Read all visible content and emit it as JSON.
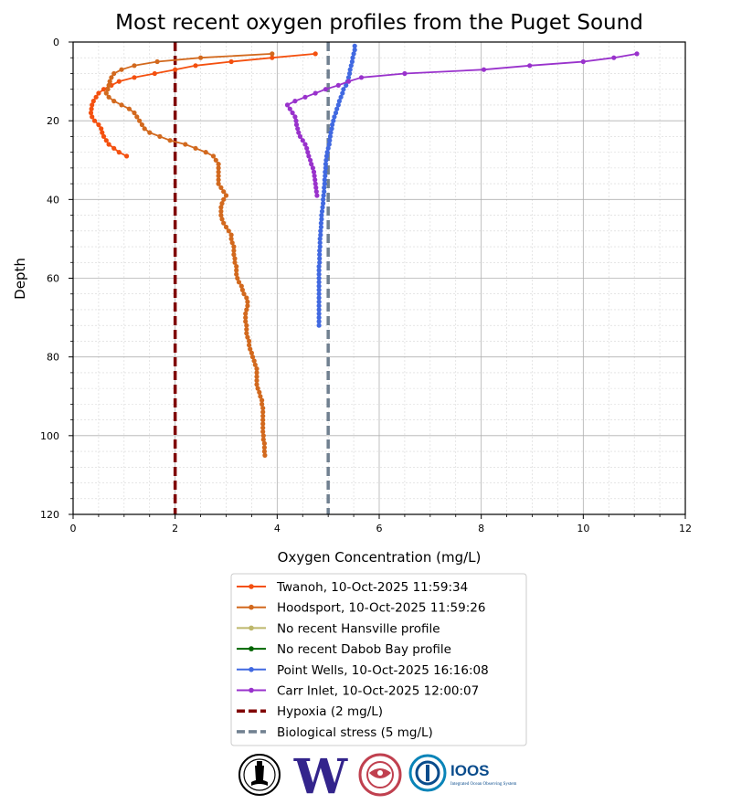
{
  "chart_data": {
    "type": "line",
    "title": "Most recent oxygen profiles from the Puget Sound",
    "xlabel": "Oxygen Concentration (mg/L)",
    "ylabel": "Depth",
    "xlim": [
      0,
      12
    ],
    "ylim": [
      0,
      120
    ],
    "y_inverted": true,
    "x_ticks": [
      "0",
      "2",
      "4",
      "6",
      "8",
      "10",
      "12"
    ],
    "y_ticks": [
      "0",
      "20",
      "40",
      "60",
      "80",
      "100",
      "120"
    ],
    "grid": "major and minor",
    "legend_position": "below",
    "series": [
      {
        "name": "Twanoh, 10-Oct-2025 11:59:34",
        "color": "#f4500f",
        "points": [
          [
            4.75,
            3
          ],
          [
            3.9,
            4
          ],
          [
            3.1,
            5
          ],
          [
            2.4,
            6
          ],
          [
            2.0,
            7
          ],
          [
            1.6,
            8
          ],
          [
            1.2,
            9
          ],
          [
            0.9,
            10
          ],
          [
            0.75,
            11
          ],
          [
            0.6,
            12
          ],
          [
            0.5,
            13
          ],
          [
            0.45,
            14
          ],
          [
            0.4,
            15
          ],
          [
            0.37,
            16
          ],
          [
            0.36,
            17
          ],
          [
            0.35,
            18
          ],
          [
            0.37,
            19
          ],
          [
            0.42,
            20
          ],
          [
            0.5,
            21
          ],
          [
            0.55,
            22
          ],
          [
            0.57,
            23
          ],
          [
            0.6,
            24
          ],
          [
            0.65,
            25
          ],
          [
            0.7,
            26
          ],
          [
            0.8,
            27
          ],
          [
            0.9,
            28
          ],
          [
            1.05,
            29
          ]
        ]
      },
      {
        "name": "Hoodsport, 10-Oct-2025 11:59:26",
        "color": "#d2691e",
        "points": [
          [
            3.9,
            3
          ],
          [
            2.5,
            4
          ],
          [
            1.65,
            5
          ],
          [
            1.2,
            6
          ],
          [
            0.95,
            7
          ],
          [
            0.8,
            8
          ],
          [
            0.75,
            9
          ],
          [
            0.72,
            10
          ],
          [
            0.7,
            11
          ],
          [
            0.68,
            12
          ],
          [
            0.65,
            13
          ],
          [
            0.7,
            14
          ],
          [
            0.8,
            15
          ],
          [
            0.95,
            16
          ],
          [
            1.1,
            17
          ],
          [
            1.2,
            18
          ],
          [
            1.25,
            19
          ],
          [
            1.3,
            20
          ],
          [
            1.35,
            21
          ],
          [
            1.4,
            22
          ],
          [
            1.5,
            23
          ],
          [
            1.7,
            24
          ],
          [
            1.9,
            25
          ],
          [
            2.2,
            26
          ],
          [
            2.4,
            27
          ],
          [
            2.6,
            28
          ],
          [
            2.75,
            29
          ],
          [
            2.8,
            30
          ],
          [
            2.85,
            31
          ],
          [
            2.85,
            32
          ],
          [
            2.85,
            33
          ],
          [
            2.85,
            34
          ],
          [
            2.85,
            35
          ],
          [
            2.85,
            36
          ],
          [
            2.9,
            37
          ],
          [
            2.95,
            38
          ],
          [
            3.0,
            39
          ],
          [
            2.95,
            40
          ],
          [
            2.92,
            41
          ],
          [
            2.9,
            42
          ],
          [
            2.9,
            43
          ],
          [
            2.9,
            44
          ],
          [
            2.92,
            45
          ],
          [
            2.95,
            46
          ],
          [
            3.0,
            47
          ],
          [
            3.05,
            48
          ],
          [
            3.1,
            49
          ],
          [
            3.1,
            50
          ],
          [
            3.12,
            51
          ],
          [
            3.15,
            52
          ],
          [
            3.15,
            53
          ],
          [
            3.15,
            54
          ],
          [
            3.17,
            55
          ],
          [
            3.17,
            56
          ],
          [
            3.2,
            57
          ],
          [
            3.2,
            58
          ],
          [
            3.2,
            59
          ],
          [
            3.22,
            60
          ],
          [
            3.25,
            61
          ],
          [
            3.3,
            62
          ],
          [
            3.32,
            63
          ],
          [
            3.35,
            64
          ],
          [
            3.4,
            65
          ],
          [
            3.42,
            66
          ],
          [
            3.42,
            67
          ],
          [
            3.4,
            68
          ],
          [
            3.38,
            69
          ],
          [
            3.38,
            70
          ],
          [
            3.38,
            71
          ],
          [
            3.4,
            72
          ],
          [
            3.4,
            73
          ],
          [
            3.4,
            74
          ],
          [
            3.42,
            75
          ],
          [
            3.45,
            76
          ],
          [
            3.45,
            77
          ],
          [
            3.47,
            78
          ],
          [
            3.5,
            79
          ],
          [
            3.52,
            80
          ],
          [
            3.55,
            81
          ],
          [
            3.57,
            82
          ],
          [
            3.6,
            83
          ],
          [
            3.6,
            84
          ],
          [
            3.6,
            85
          ],
          [
            3.6,
            86
          ],
          [
            3.6,
            87
          ],
          [
            3.62,
            88
          ],
          [
            3.65,
            89
          ],
          [
            3.67,
            90
          ],
          [
            3.7,
            91
          ],
          [
            3.7,
            92
          ],
          [
            3.72,
            93
          ],
          [
            3.72,
            94
          ],
          [
            3.72,
            95
          ],
          [
            3.72,
            96
          ],
          [
            3.72,
            97
          ],
          [
            3.72,
            98
          ],
          [
            3.72,
            99
          ],
          [
            3.73,
            100
          ],
          [
            3.73,
            101
          ],
          [
            3.75,
            102
          ],
          [
            3.75,
            103
          ],
          [
            3.75,
            104
          ],
          [
            3.76,
            105
          ]
        ]
      },
      {
        "name": "No recent Hansville profile",
        "color": "#bdb76b",
        "points": []
      },
      {
        "name": "No recent Dabob Bay profile",
        "color": "#006400",
        "points": []
      },
      {
        "name": "Point Wells, 10-Oct-2025 16:16:08",
        "color": "#4169e1",
        "points": [
          [
            5.52,
            1
          ],
          [
            5.52,
            2
          ],
          [
            5.5,
            3
          ],
          [
            5.48,
            4
          ],
          [
            5.47,
            5
          ],
          [
            5.45,
            6
          ],
          [
            5.43,
            7
          ],
          [
            5.42,
            8
          ],
          [
            5.4,
            9
          ],
          [
            5.38,
            10
          ],
          [
            5.35,
            11
          ],
          [
            5.3,
            12
          ],
          [
            5.28,
            13
          ],
          [
            5.25,
            14
          ],
          [
            5.22,
            15
          ],
          [
            5.2,
            16
          ],
          [
            5.17,
            17
          ],
          [
            5.15,
            18
          ],
          [
            5.12,
            19
          ],
          [
            5.1,
            20
          ],
          [
            5.08,
            21
          ],
          [
            5.07,
            22
          ],
          [
            5.05,
            23
          ],
          [
            5.04,
            24
          ],
          [
            5.03,
            25
          ],
          [
            5.02,
            26
          ],
          [
            5.0,
            27
          ],
          [
            4.98,
            28
          ],
          [
            4.97,
            29
          ],
          [
            4.96,
            30
          ],
          [
            4.95,
            31
          ],
          [
            4.95,
            32
          ],
          [
            4.94,
            33
          ],
          [
            4.94,
            34
          ],
          [
            4.93,
            35
          ],
          [
            4.93,
            36
          ],
          [
            4.92,
            37
          ],
          [
            4.92,
            38
          ],
          [
            4.91,
            39
          ],
          [
            4.9,
            40
          ],
          [
            4.9,
            41
          ],
          [
            4.89,
            42
          ],
          [
            4.88,
            43
          ],
          [
            4.87,
            44
          ],
          [
            4.87,
            45
          ],
          [
            4.86,
            46
          ],
          [
            4.86,
            47
          ],
          [
            4.85,
            48
          ],
          [
            4.85,
            49
          ],
          [
            4.84,
            50
          ],
          [
            4.84,
            51
          ],
          [
            4.84,
            52
          ],
          [
            4.83,
            53
          ],
          [
            4.83,
            54
          ],
          [
            4.83,
            55
          ],
          [
            4.83,
            56
          ],
          [
            4.82,
            57
          ],
          [
            4.82,
            58
          ],
          [
            4.82,
            59
          ],
          [
            4.82,
            60
          ],
          [
            4.82,
            61
          ],
          [
            4.82,
            62
          ],
          [
            4.82,
            63
          ],
          [
            4.82,
            64
          ],
          [
            4.82,
            65
          ],
          [
            4.82,
            66
          ],
          [
            4.82,
            67
          ],
          [
            4.82,
            68
          ],
          [
            4.82,
            69
          ],
          [
            4.82,
            70
          ],
          [
            4.82,
            71
          ],
          [
            4.82,
            72
          ]
        ]
      },
      {
        "name": "Carr Inlet, 10-Oct-2025 12:00:07",
        "color": "#9932cc",
        "points": [
          [
            11.05,
            3
          ],
          [
            10.6,
            4
          ],
          [
            10.0,
            5
          ],
          [
            8.95,
            6
          ],
          [
            8.05,
            7
          ],
          [
            6.5,
            8
          ],
          [
            5.65,
            9
          ],
          [
            5.4,
            10
          ],
          [
            5.2,
            11
          ],
          [
            4.95,
            12
          ],
          [
            4.75,
            13
          ],
          [
            4.55,
            14
          ],
          [
            4.35,
            15
          ],
          [
            4.2,
            16
          ],
          [
            4.25,
            17
          ],
          [
            4.3,
            18
          ],
          [
            4.35,
            19
          ],
          [
            4.37,
            20
          ],
          [
            4.38,
            21
          ],
          [
            4.4,
            22
          ],
          [
            4.42,
            23
          ],
          [
            4.45,
            24
          ],
          [
            4.5,
            25
          ],
          [
            4.55,
            26
          ],
          [
            4.58,
            27
          ],
          [
            4.6,
            28
          ],
          [
            4.62,
            29
          ],
          [
            4.65,
            30
          ],
          [
            4.67,
            31
          ],
          [
            4.7,
            32
          ],
          [
            4.72,
            33
          ],
          [
            4.73,
            34
          ],
          [
            4.74,
            35
          ],
          [
            4.75,
            36
          ],
          [
            4.76,
            37
          ],
          [
            4.77,
            38
          ],
          [
            4.78,
            39
          ]
        ]
      }
    ],
    "reference_lines": [
      {
        "name": "Hypoxia (2 mg/L)",
        "x": 2,
        "color": "#800000"
      },
      {
        "name": "Biological stress (5 mg/L)",
        "x": 5,
        "color": "#708090"
      }
    ]
  },
  "logos": [
    {
      "name": "seal-logo"
    },
    {
      "name": "uw-logo",
      "text": "W",
      "color": "#33248c"
    },
    {
      "name": "tribal-logo",
      "color": "#c0404f"
    },
    {
      "name": "ioos-logo",
      "text": "IOOS",
      "subtext": "Integrated Ocean Observing System",
      "color": "#0a4c8c"
    }
  ]
}
